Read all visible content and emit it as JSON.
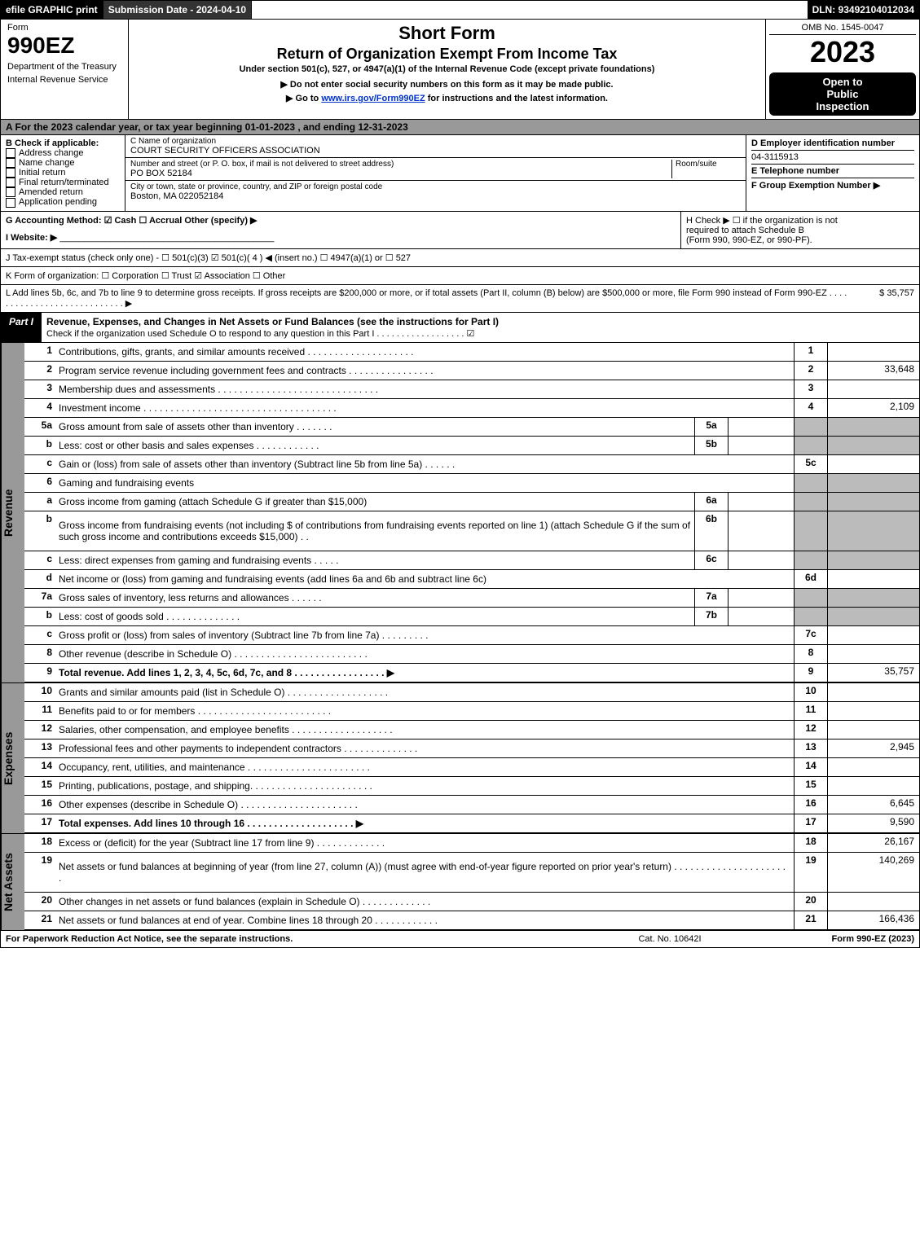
{
  "top": {
    "efile": "efile GRAPHIC print",
    "submission": "Submission Date - 2024-04-10",
    "dln": "DLN: 93492104012034"
  },
  "header": {
    "form_word": "Form",
    "form_num": "990EZ",
    "dept1": "Department of the Treasury",
    "dept2": "Internal Revenue Service",
    "title1": "Short Form",
    "title2": "Return of Organization Exempt From Income Tax",
    "title3": "Under section 501(c), 527, or 4947(a)(1) of the Internal Revenue Code (except private foundations)",
    "title4": "▶ Do not enter social security numbers on this form as it may be made public.",
    "title5_pre": "▶ Go to ",
    "title5_link": "www.irs.gov/Form990EZ",
    "title5_post": " for instructions and the latest information.",
    "omb": "OMB No. 1545-0047",
    "year": "2023",
    "open1": "Open to",
    "open2": "Public",
    "open3": "Inspection"
  },
  "row_a": "A  For the 2023 calendar year, or tax year beginning 01-01-2023 , and ending 12-31-2023",
  "b": {
    "hdr": "B  Check if applicable:",
    "items": [
      "Address change",
      "Name change",
      "Initial return",
      "Final return/terminated",
      "Amended return",
      "Application pending"
    ]
  },
  "c": {
    "name_lbl": "C Name of organization",
    "name": "COURT SECURITY OFFICERS ASSOCIATION",
    "addr_lbl": "Number and street (or P. O. box, if mail is not delivered to street address)",
    "room_lbl": "Room/suite",
    "addr": "PO BOX 52184",
    "city_lbl": "City or town, state or province, country, and ZIP or foreign postal code",
    "city": "Boston, MA  022052184"
  },
  "d": {
    "lbl": "D Employer identification number",
    "val": "04-3115913"
  },
  "e": {
    "lbl": "E Telephone number"
  },
  "f": {
    "lbl": "F Group Exemption Number  ▶"
  },
  "g": "G Accounting Method:   ☑ Cash  ☐ Accrual  Other (specify) ▶",
  "h": {
    "l1": "H  Check ▶  ☐  if the organization is not",
    "l2": "required to attach Schedule B",
    "l3": "(Form 990, 990-EZ, or 990-PF)."
  },
  "i": "I Website: ▶",
  "j": "J Tax-exempt status (check only one) - ☐ 501(c)(3)  ☑  501(c)( 4 ) ◀ (insert no.) ☐  4947(a)(1) or  ☐ 527",
  "k": "K Form of organization:   ☐ Corporation   ☐ Trust   ☑ Association   ☐ Other",
  "l": {
    "text": "L Add lines 5b, 6c, and 7b to line 9 to determine gross receipts. If gross receipts are $200,000 or more, or if total assets (Part II, column (B) below) are $500,000 or more, file Form 990 instead of Form 990-EZ  .  .  .  .  .  .  .  .  .  .  .  .  .  .  .  .  .  .  .  .  .  .  .  .  .  .  .  .  ▶",
    "amt": "$ 35,757"
  },
  "part1": {
    "lbl": "Part I",
    "ttl": "Revenue, Expenses, and Changes in Net Assets or Fund Balances (see the instructions for Part I)",
    "sub": "Check if the organization used Schedule O to respond to any question in this Part I  .  .  .  .  .  .  .  .  .  .  .  .  .  .  .  .  .  .  ☑"
  },
  "sections": {
    "revenue": "Revenue",
    "expenses": "Expenses",
    "net": "Net Assets"
  },
  "lines": [
    {
      "n": "1",
      "d": "Contributions, gifts, grants, and similar amounts received  .  .  .  .  .  .  .  .  .  .  .  .  .  .  .  .  .  .  .  .",
      "r": "1",
      "v": ""
    },
    {
      "n": "2",
      "d": "Program service revenue including government fees and contracts  .  .  .  .  .  .  .  .  .  .  .  .  .  .  .  .",
      "r": "2",
      "v": "33,648"
    },
    {
      "n": "3",
      "d": "Membership dues and assessments  .  .  .  .  .  .  .  .  .  .  .  .  .  .  .  .  .  .  .  .  .  .  .  .  .  .  .  .  .  .",
      "r": "3",
      "v": ""
    },
    {
      "n": "4",
      "d": "Investment income  .  .  .  .  .  .  .  .  .  .  .  .  .  .  .  .  .  .  .  .  .  .  .  .  .  .  .  .  .  .  .  .  .  .  .  .",
      "r": "4",
      "v": "2,109"
    },
    {
      "n": "5a",
      "d": "Gross amount from sale of assets other than inventory  .  .  .  .  .  .  .",
      "m": "5a",
      "shade": true
    },
    {
      "n": "b",
      "d": "Less: cost or other basis and sales expenses  .  .  .  .  .  .  .  .  .  .  .  .",
      "m": "5b",
      "shade": true
    },
    {
      "n": "c",
      "d": "Gain or (loss) from sale of assets other than inventory (Subtract line 5b from line 5a)  .  .  .  .  .  .",
      "r": "5c",
      "v": ""
    },
    {
      "n": "6",
      "d": "Gaming and fundraising events",
      "shade": true
    },
    {
      "n": "a",
      "d": "Gross income from gaming (attach Schedule G if greater than $15,000)",
      "m": "6a",
      "shade": true
    },
    {
      "n": "b",
      "d": "Gross income from fundraising events (not including $                       of contributions from fundraising events reported on line 1) (attach Schedule G if the sum of such gross income and contributions exceeds $15,000)   .  .",
      "m": "6b",
      "shade": true,
      "tall": true
    },
    {
      "n": "c",
      "d": "Less: direct expenses from gaming and fundraising events  .  .  .  .  .",
      "m": "6c",
      "shade": true
    },
    {
      "n": "d",
      "d": "Net income or (loss) from gaming and fundraising events (add lines 6a and 6b and subtract line 6c)",
      "r": "6d",
      "v": ""
    },
    {
      "n": "7a",
      "d": "Gross sales of inventory, less returns and allowances  .  .  .  .  .  .",
      "m": "7a",
      "shade": true
    },
    {
      "n": "b",
      "d": "Less: cost of goods sold          .  .  .  .  .  .  .  .  .  .  .  .  .  .",
      "m": "7b",
      "shade": true
    },
    {
      "n": "c",
      "d": "Gross profit or (loss) from sales of inventory (Subtract line 7b from line 7a)  .  .  .  .  .  .  .  .  .",
      "r": "7c",
      "v": ""
    },
    {
      "n": "8",
      "d": "Other revenue (describe in Schedule O)  .  .  .  .  .  .  .  .  .  .  .  .  .  .  .  .  .  .  .  .  .  .  .  .  .",
      "r": "8",
      "v": ""
    },
    {
      "n": "9",
      "d": "Total revenue. Add lines 1, 2, 3, 4, 5c, 6d, 7c, and 8   .  .  .  .  .  .  .  .  .  .  .  .  .  .  .  .  .    ▶",
      "r": "9",
      "v": "35,757",
      "bold": true
    }
  ],
  "exp_lines": [
    {
      "n": "10",
      "d": "Grants and similar amounts paid (list in Schedule O)  .  .  .  .  .  .  .  .  .  .  .  .  .  .  .  .  .  .  .",
      "r": "10",
      "v": ""
    },
    {
      "n": "11",
      "d": "Benefits paid to or for members        .  .  .  .  .  .  .  .  .  .  .  .  .  .  .  .  .  .  .  .  .  .  .  .  .",
      "r": "11",
      "v": ""
    },
    {
      "n": "12",
      "d": "Salaries, other compensation, and employee benefits  .  .  .  .  .  .  .  .  .  .  .  .  .  .  .  .  .  .  .",
      "r": "12",
      "v": ""
    },
    {
      "n": "13",
      "d": "Professional fees and other payments to independent contractors  .  .  .  .  .  .  .  .  .  .  .  .  .  .",
      "r": "13",
      "v": "2,945"
    },
    {
      "n": "14",
      "d": "Occupancy, rent, utilities, and maintenance .  .  .  .  .  .  .  .  .  .  .  .  .  .  .  .  .  .  .  .  .  .  .",
      "r": "14",
      "v": ""
    },
    {
      "n": "15",
      "d": "Printing, publications, postage, and shipping.  .  .  .  .  .  .  .  .  .  .  .  .  .  .  .  .  .  .  .  .  .  .",
      "r": "15",
      "v": ""
    },
    {
      "n": "16",
      "d": "Other expenses (describe in Schedule O)       .  .  .  .  .  .  .  .  .  .  .  .  .  .  .  .  .  .  .  .  .  .",
      "r": "16",
      "v": "6,645"
    },
    {
      "n": "17",
      "d": "Total expenses. Add lines 10 through 16       .  .  .  .  .  .  .  .  .  .  .  .  .  .  .  .  .  .  .  .   ▶",
      "r": "17",
      "v": "9,590",
      "bold": true
    }
  ],
  "net_lines": [
    {
      "n": "18",
      "d": "Excess or (deficit) for the year (Subtract line 17 from line 9)        .  .  .  .  .  .  .  .  .  .  .  .  .",
      "r": "18",
      "v": "26,167"
    },
    {
      "n": "19",
      "d": "Net assets or fund balances at beginning of year (from line 27, column (A)) (must agree with end-of-year figure reported on prior year's return) .  .  .  .  .  .  .  .  .  .  .  .  .  .  .  .  .  .  .  .  .  .",
      "r": "19",
      "v": "140,269",
      "tall": true
    },
    {
      "n": "20",
      "d": "Other changes in net assets or fund balances (explain in Schedule O)  .  .  .  .  .  .  .  .  .  .  .  .  .",
      "r": "20",
      "v": ""
    },
    {
      "n": "21",
      "d": "Net assets or fund balances at end of year. Combine lines 18 through 20 .  .  .  .  .  .  .  .  .  .  .  .",
      "r": "21",
      "v": "166,436"
    }
  ],
  "footer": {
    "left": "For Paperwork Reduction Act Notice, see the separate instructions.",
    "mid": "Cat. No. 10642I",
    "right": "Form 990-EZ (2023)"
  }
}
